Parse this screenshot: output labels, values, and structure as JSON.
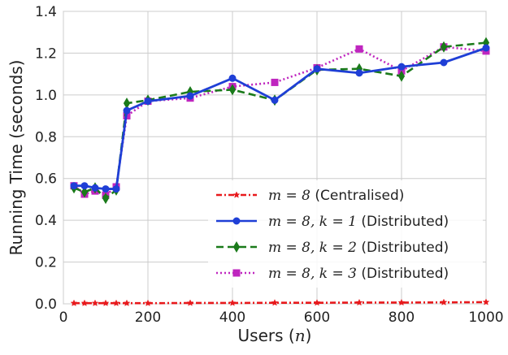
{
  "chart_data": {
    "type": "line",
    "title": "",
    "xlabel": "Users",
    "xlabel_var": "n",
    "ylabel": "Running Time (seconds)",
    "xlim": [
      0,
      1000
    ],
    "ylim": [
      0,
      1.4
    ],
    "xticks": [
      0,
      200,
      400,
      600,
      800,
      1000
    ],
    "xtick_labels": [
      "0",
      "200",
      "400",
      "600",
      "800",
      "1000"
    ],
    "yticks": [
      0,
      0.2,
      0.4,
      0.6,
      0.8,
      1.0,
      1.2,
      1.4
    ],
    "ytick_labels": [
      "0.0",
      "0.2",
      "0.4",
      "0.6",
      "0.8",
      "1.0",
      "1.2",
      "1.4"
    ],
    "grid": true,
    "legend_position": "lower-right",
    "series": [
      {
        "name": "m = 8 (Centralised)",
        "legend_math": "m = 8",
        "legend_text": "(Centralised)",
        "color": "#e8191c",
        "style": "dashdot",
        "marker": "star",
        "x": [
          25,
          50,
          75,
          100,
          125,
          150,
          200,
          300,
          400,
          500,
          600,
          700,
          800,
          900,
          1000
        ],
        "y": [
          0.003,
          0.003,
          0.003,
          0.003,
          0.003,
          0.003,
          0.003,
          0.004,
          0.004,
          0.005,
          0.005,
          0.006,
          0.006,
          0.007,
          0.008
        ]
      },
      {
        "name": "m = 8, k = 1 (Distributed)",
        "legend_math": "m = 8, k = 1",
        "legend_text": "(Distributed)",
        "color": "#1f3fd6",
        "style": "solid",
        "marker": "circle",
        "x": [
          25,
          50,
          75,
          100,
          125,
          150,
          200,
          300,
          400,
          500,
          600,
          700,
          800,
          900,
          1000
        ],
        "y": [
          0.565,
          0.565,
          0.555,
          0.55,
          0.55,
          0.925,
          0.97,
          0.995,
          1.08,
          0.975,
          1.125,
          1.105,
          1.135,
          1.155,
          1.225
        ]
      },
      {
        "name": "m = 8, k = 2 (Distributed)",
        "legend_math": "m = 8, k = 2",
        "legend_text": "(Distributed)",
        "color": "#1a7a1a",
        "style": "dashed",
        "marker": "thin_diamond",
        "x": [
          25,
          50,
          75,
          100,
          125,
          150,
          200,
          300,
          400,
          500,
          600,
          700,
          800,
          900,
          1000
        ],
        "y": [
          0.555,
          0.535,
          0.555,
          0.505,
          0.545,
          0.96,
          0.975,
          1.015,
          1.025,
          0.975,
          1.12,
          1.125,
          1.09,
          1.23,
          1.25
        ]
      },
      {
        "name": "m = 8, k = 3 (Distributed)",
        "legend_math": "m = 8, k = 3",
        "legend_text": "(Distributed)",
        "color": "#bf26bf",
        "style": "dotted",
        "marker": "square",
        "x": [
          25,
          50,
          75,
          100,
          125,
          150,
          200,
          300,
          400,
          500,
          600,
          700,
          800,
          900,
          1000
        ],
        "y": [
          0.565,
          0.525,
          0.54,
          0.52,
          0.56,
          0.9,
          0.97,
          0.985,
          1.04,
          1.06,
          1.13,
          1.22,
          1.115,
          1.23,
          1.21
        ]
      }
    ]
  }
}
